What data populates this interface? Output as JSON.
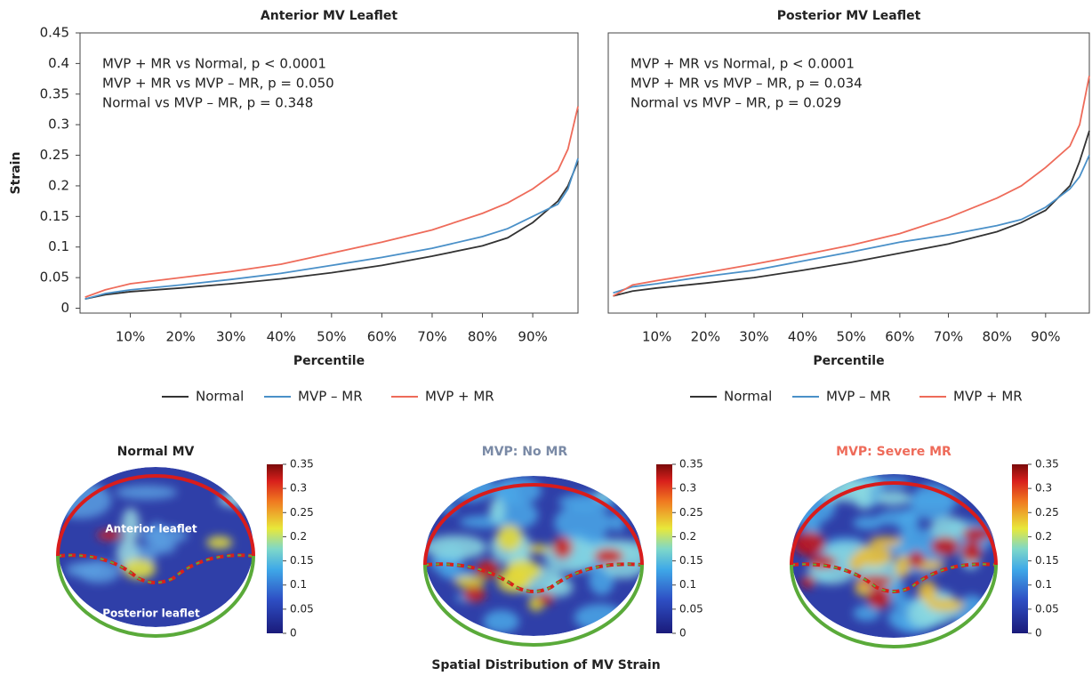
{
  "chart_data": [
    {
      "type": "line",
      "title": "Anterior MV Leaflet",
      "x_label": "Percentile",
      "y_label": "Strain",
      "annotations": [
        "MVP + MR vs Normal, p < 0.0001",
        "MVP + MR vs MVP – MR, p = 0.050",
        "Normal vs MVP – MR, p = 0.348"
      ],
      "x": [
        1,
        5,
        10,
        20,
        30,
        40,
        50,
        60,
        70,
        80,
        85,
        90,
        95,
        97,
        99
      ],
      "series": [
        {
          "name": "Normal",
          "color": "#333333",
          "values": [
            0.015,
            0.022,
            0.027,
            0.033,
            0.04,
            0.048,
            0.058,
            0.07,
            0.085,
            0.102,
            0.115,
            0.14,
            0.175,
            0.2,
            0.24
          ]
        },
        {
          "name": "MVP – MR",
          "color": "#4a90c8",
          "values": [
            0.015,
            0.024,
            0.03,
            0.038,
            0.047,
            0.057,
            0.07,
            0.083,
            0.098,
            0.117,
            0.13,
            0.15,
            0.17,
            0.195,
            0.245
          ]
        },
        {
          "name": "MVP + MR",
          "color": "#ee6b5a",
          "values": [
            0.018,
            0.03,
            0.04,
            0.05,
            0.06,
            0.072,
            0.09,
            0.108,
            0.128,
            0.155,
            0.172,
            0.195,
            0.225,
            0.26,
            0.33
          ]
        }
      ],
      "xlim": [
        0,
        99
      ],
      "ylim": [
        -0.008,
        0.45
      ],
      "xticks": [
        {
          "value": 10,
          "label": "10%"
        },
        {
          "value": 20,
          "label": "20%"
        },
        {
          "value": 30,
          "label": "30%"
        },
        {
          "value": 40,
          "label": "40%"
        },
        {
          "value": 50,
          "label": "50%"
        },
        {
          "value": 60,
          "label": "60%"
        },
        {
          "value": 70,
          "label": "70%"
        },
        {
          "value": 80,
          "label": "80%"
        },
        {
          "value": 90,
          "label": "90%"
        }
      ],
      "yticks": [
        0,
        0.05,
        0.1,
        0.15,
        0.2,
        0.25,
        0.3,
        0.35,
        0.4,
        0.45
      ]
    },
    {
      "type": "line",
      "title": "Posterior MV Leaflet",
      "x_label": "Percentile",
      "annotations": [
        "MVP + MR vs Normal, p < 0.0001",
        "MVP + MR vs MVP – MR, p = 0.034",
        "Normal vs MVP – MR, p = 0.029"
      ],
      "x": [
        1,
        5,
        10,
        20,
        30,
        40,
        50,
        60,
        70,
        80,
        85,
        90,
        95,
        97,
        99
      ],
      "series": [
        {
          "name": "Normal",
          "color": "#333333",
          "values": [
            0.02,
            0.028,
            0.033,
            0.041,
            0.05,
            0.062,
            0.075,
            0.09,
            0.105,
            0.125,
            0.14,
            0.16,
            0.2,
            0.24,
            0.29
          ]
        },
        {
          "name": "MVP – MR",
          "color": "#4a90c8",
          "values": [
            0.025,
            0.035,
            0.04,
            0.052,
            0.062,
            0.077,
            0.092,
            0.108,
            0.12,
            0.135,
            0.145,
            0.165,
            0.195,
            0.215,
            0.25
          ]
        },
        {
          "name": "MVP + MR",
          "color": "#ee6b5a",
          "values": [
            0.02,
            0.038,
            0.045,
            0.058,
            0.072,
            0.087,
            0.103,
            0.122,
            0.148,
            0.18,
            0.2,
            0.23,
            0.265,
            0.3,
            0.38
          ]
        }
      ],
      "xlim": [
        0,
        99
      ],
      "ylim": [
        -0.008,
        0.45
      ],
      "xticks": [
        {
          "value": 10,
          "label": "10%"
        },
        {
          "value": 20,
          "label": "20%"
        },
        {
          "value": 30,
          "label": "30%"
        },
        {
          "value": 40,
          "label": "40%"
        },
        {
          "value": 50,
          "label": "50%"
        },
        {
          "value": 60,
          "label": "60%"
        },
        {
          "value": 70,
          "label": "70%"
        },
        {
          "value": 80,
          "label": "80%"
        },
        {
          "value": 90,
          "label": "90%"
        }
      ]
    }
  ],
  "spatial": {
    "title": "Spatial Distribution of MV Strain",
    "panels": [
      {
        "title": "Normal MV",
        "color": "#222222",
        "labels": [
          "Anterior leaflet",
          "Posterior leaflet"
        ]
      },
      {
        "title": "MVP: No MR",
        "color": "#7a8aa6"
      },
      {
        "title": "MVP: Severe MR",
        "color": "#ee6b5a"
      }
    ],
    "colorbar": {
      "lim": [
        0,
        0.35
      ],
      "ticks": [
        0,
        0.05,
        0.1,
        0.15,
        0.2,
        0.25,
        0.3,
        0.35
      ]
    }
  }
}
